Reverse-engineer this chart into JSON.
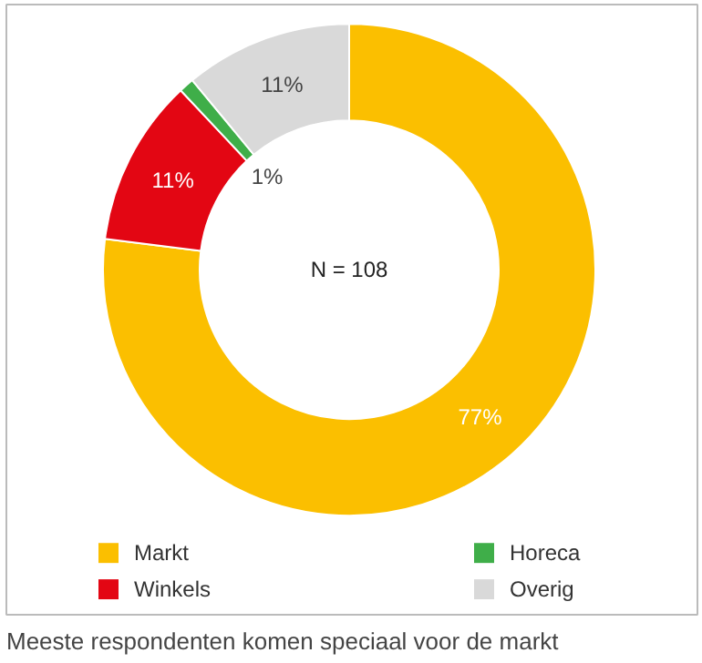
{
  "chart_data": {
    "type": "donut",
    "categories": [
      "Markt",
      "Winkels",
      "Horeca",
      "Overig"
    ],
    "values": [
      77,
      11,
      1,
      11
    ],
    "colors": [
      "#fbbf00",
      "#e30613",
      "#3fae49",
      "#d9d9d9"
    ],
    "value_labels": [
      "77%",
      "11%",
      "1%",
      "11%"
    ],
    "legend": "bottom",
    "annotations": [
      "N = 108",
      "Meeste respondenten komen speciaal voor de markt"
    ]
  }
}
